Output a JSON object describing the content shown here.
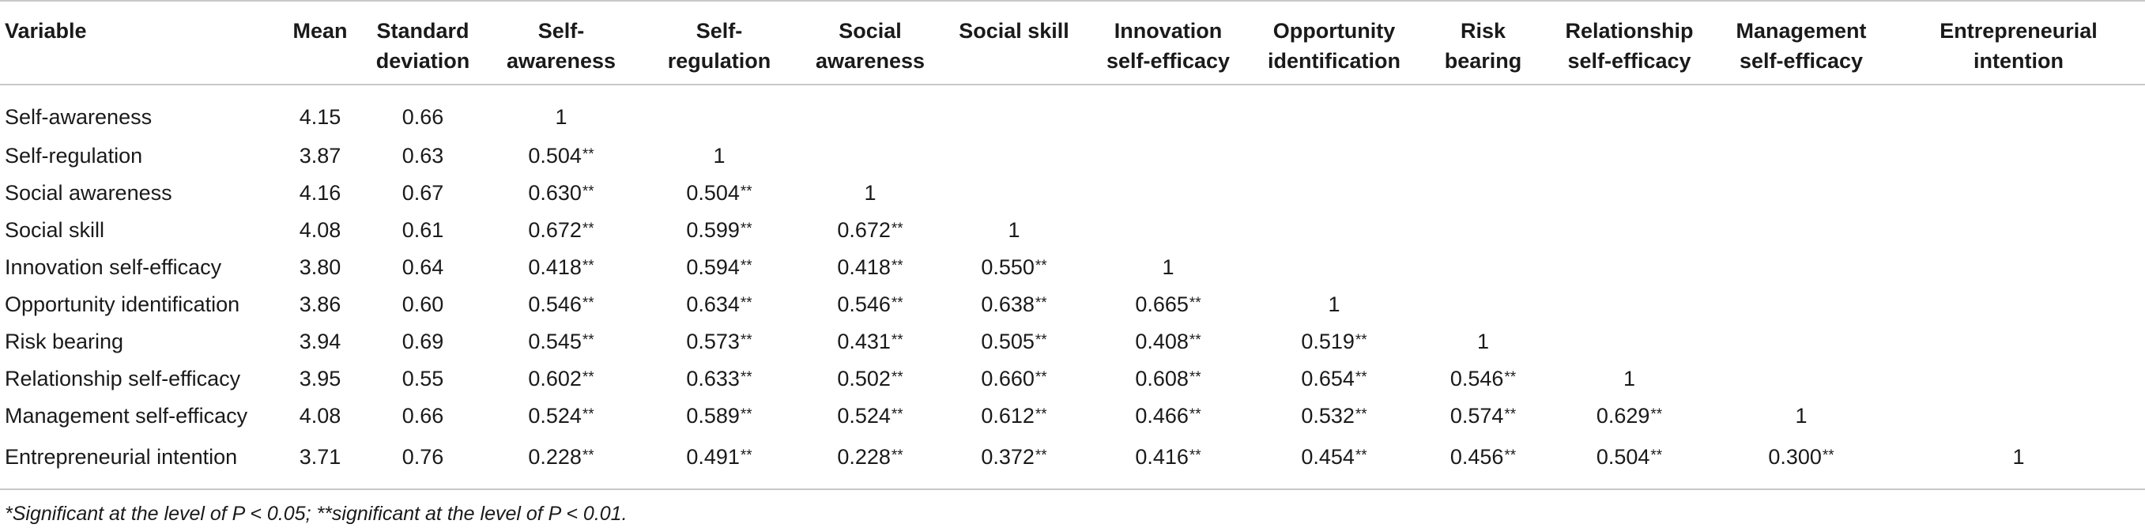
{
  "table": {
    "headers": [
      "Variable",
      "Mean",
      "Standard deviation",
      "Self-awareness",
      "Self-regulation",
      "Social awareness",
      "Social skill",
      "Innovation self-efficacy",
      "Opportunity identification",
      "Risk bearing",
      "Relationship self-efficacy",
      "Management self-efficacy",
      "Entrepreneurial intention"
    ],
    "header_lines": [
      [
        "Variable"
      ],
      [
        "Mean"
      ],
      [
        "Standard",
        "deviation"
      ],
      [
        "Self-",
        "awareness"
      ],
      [
        "Self-",
        "regulation"
      ],
      [
        "Social",
        "awareness"
      ],
      [
        "Social skill"
      ],
      [
        "Innovation",
        "self-efficacy"
      ],
      [
        "Opportunity",
        "identification"
      ],
      [
        "Risk",
        "bearing"
      ],
      [
        "Relationship",
        "self-efficacy"
      ],
      [
        "Management",
        "self-efficacy"
      ],
      [
        "Entrepreneurial",
        "intention"
      ]
    ],
    "rows": [
      {
        "variable": "Self-awareness",
        "mean": "4.15",
        "sd": "0.66",
        "cells": [
          "1",
          "",
          "",
          "",
          "",
          "",
          "",
          "",
          "",
          ""
        ]
      },
      {
        "variable": "Self-regulation",
        "mean": "3.87",
        "sd": "0.63",
        "cells": [
          "0.504**",
          "1",
          "",
          "",
          "",
          "",
          "",
          "",
          "",
          ""
        ]
      },
      {
        "variable": "Social awareness",
        "mean": "4.16",
        "sd": "0.67",
        "cells": [
          "0.630**",
          "0.504**",
          "1",
          "",
          "",
          "",
          "",
          "",
          "",
          ""
        ]
      },
      {
        "variable": "Social skill",
        "mean": "4.08",
        "sd": "0.61",
        "cells": [
          "0.672**",
          "0.599**",
          "0.672**",
          "1",
          "",
          "",
          "",
          "",
          "",
          ""
        ]
      },
      {
        "variable": "Innovation self-efficacy",
        "mean": "3.80",
        "sd": "0.64",
        "cells": [
          "0.418**",
          "0.594**",
          "0.418**",
          "0.550**",
          "1",
          "",
          "",
          "",
          "",
          ""
        ]
      },
      {
        "variable": "Opportunity identification",
        "mean": "3.86",
        "sd": "0.60",
        "cells": [
          "0.546**",
          "0.634**",
          "0.546**",
          "0.638**",
          "0.665**",
          "1",
          "",
          "",
          "",
          ""
        ]
      },
      {
        "variable": "Risk bearing",
        "mean": "3.94",
        "sd": "0.69",
        "cells": [
          "0.545**",
          "0.573**",
          "0.431**",
          "0.505**",
          "0.408**",
          "0.519**",
          "1",
          "",
          "",
          ""
        ]
      },
      {
        "variable": "Relationship self-efficacy",
        "mean": "3.95",
        "sd": "0.55",
        "cells": [
          "0.602**",
          "0.633**",
          "0.502**",
          "0.660**",
          "0.608**",
          "0.654**",
          "0.546**",
          "1",
          "",
          ""
        ]
      },
      {
        "variable": "Management self-efficacy",
        "mean": "4.08",
        "sd": "0.66",
        "cells": [
          "0.524**",
          "0.589**",
          "0.524**",
          "0.612**",
          "0.466**",
          "0.532**",
          "0.574**",
          "0.629**",
          "1",
          ""
        ]
      },
      {
        "variable": "Entrepreneurial intention",
        "mean": "3.71",
        "sd": "0.76",
        "cells": [
          "0.228**",
          "0.491**",
          "0.228**",
          "0.372**",
          "0.416**",
          "0.454**",
          "0.456**",
          "0.504**",
          "0.300**",
          "1"
        ]
      }
    ]
  },
  "footnote": "*Significant at the level of P < 0.05; **significant at the level of P < 0.01."
}
